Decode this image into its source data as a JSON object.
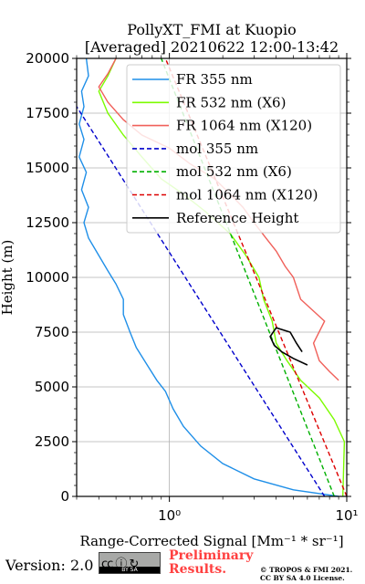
{
  "chart_data": {
    "type": "line",
    "title": "PollyXT_FMI at Kuopio",
    "subtitle": "[Averaged] 20210622 12:00-13:42",
    "xlabel": "Range-Corrected Signal [Mm⁻¹ * sr⁻¹]",
    "ylabel": "Height (m)",
    "xscale": "log",
    "xlim": [
      0.3,
      10
    ],
    "ylim": [
      0,
      20000
    ],
    "x_ticks": [
      1,
      10
    ],
    "x_tick_labels": [
      "10⁰",
      "10¹"
    ],
    "y_ticks": [
      0,
      2500,
      5000,
      7500,
      10000,
      12500,
      15000,
      17500,
      20000
    ],
    "y_tick_labels": [
      "0",
      "2500",
      "5000",
      "7500",
      "10000",
      "12500",
      "15000",
      "17500",
      "20000"
    ],
    "grid": true,
    "legend_position": "top-right",
    "series": [
      {
        "name": "FR 355 nm",
        "color": "#1f8fe8",
        "style": "solid",
        "points": [
          [
            9.0,
            0
          ],
          [
            5.0,
            300
          ],
          [
            3.0,
            800
          ],
          [
            2.0,
            1500
          ],
          [
            1.5,
            2300
          ],
          [
            1.2,
            3200
          ],
          [
            1.05,
            4000
          ],
          [
            0.95,
            4800
          ],
          [
            0.85,
            5300
          ],
          [
            0.75,
            6000
          ],
          [
            0.65,
            6800
          ],
          [
            0.6,
            7500
          ],
          [
            0.55,
            8300
          ],
          [
            0.55,
            9000
          ],
          [
            0.5,
            9700
          ],
          [
            0.45,
            10300
          ],
          [
            0.4,
            11000
          ],
          [
            0.35,
            11800
          ],
          [
            0.33,
            12500
          ],
          [
            0.35,
            13200
          ],
          [
            0.32,
            14000
          ],
          [
            0.34,
            14800
          ],
          [
            0.31,
            15500
          ],
          [
            0.33,
            16300
          ],
          [
            0.31,
            17000
          ],
          [
            0.33,
            17800
          ],
          [
            0.32,
            18500
          ],
          [
            0.35,
            19200
          ],
          [
            0.34,
            20000
          ]
        ]
      },
      {
        "name": "FR 532 nm (X6)",
        "color": "#7cfc00",
        "style": "solid",
        "points": [
          [
            9.5,
            0
          ],
          [
            9.7,
            2500
          ],
          [
            8.5,
            3500
          ],
          [
            7.0,
            4500
          ],
          [
            5.5,
            5300
          ],
          [
            4.6,
            6200
          ],
          [
            4.0,
            7000
          ],
          [
            3.8,
            8000
          ],
          [
            3.4,
            9000
          ],
          [
            3.2,
            10000
          ],
          [
            2.7,
            11000
          ],
          [
            2.2,
            12000
          ],
          [
            1.6,
            13000
          ],
          [
            1.2,
            13800
          ],
          [
            0.9,
            14500
          ],
          [
            0.7,
            15500
          ],
          [
            0.55,
            16500
          ],
          [
            0.45,
            17500
          ],
          [
            0.4,
            18500
          ],
          [
            0.45,
            19200
          ],
          [
            0.5,
            20000
          ]
        ]
      },
      {
        "name": "FR 1064 nm (X120)",
        "color": "#f0605a",
        "style": "solid",
        "points": [
          [
            9.0,
            5300
          ],
          [
            8.0,
            5700
          ],
          [
            7.0,
            6200
          ],
          [
            6.5,
            7000
          ],
          [
            7.5,
            8000
          ],
          [
            5.5,
            9000
          ],
          [
            5.0,
            10000
          ],
          [
            4.5,
            10500
          ],
          [
            4.0,
            11200
          ],
          [
            3.5,
            11800
          ],
          [
            3.0,
            12500
          ],
          [
            2.6,
            13200
          ],
          [
            2.2,
            13800
          ],
          [
            1.8,
            14500
          ],
          [
            1.3,
            15200
          ],
          [
            1.0,
            15900
          ],
          [
            0.7,
            16500
          ],
          [
            0.55,
            17200
          ],
          [
            0.45,
            18000
          ],
          [
            0.4,
            18700
          ],
          [
            0.45,
            19300
          ],
          [
            0.5,
            20000
          ]
        ]
      },
      {
        "name": "mol 355 nm",
        "color": "#0000cc",
        "style": "dashed",
        "points": [
          [
            7.5,
            0
          ],
          [
            0.3,
            17800
          ]
        ]
      },
      {
        "name": "mol 532 nm (X6)",
        "color": "#00b000",
        "style": "dashed",
        "points": [
          [
            8.5,
            0
          ],
          [
            0.9,
            20000
          ]
        ]
      },
      {
        "name": "mol 1064 nm (X120)",
        "color": "#dd0000",
        "style": "dashed",
        "points": [
          [
            10,
            0
          ],
          [
            0.95,
            20000
          ]
        ]
      },
      {
        "name": "Reference Height",
        "color": "#000000",
        "style": "solid",
        "points": [
          [
            6.0,
            6000
          ],
          [
            5.0,
            6300
          ],
          [
            4.3,
            6600
          ],
          [
            3.9,
            6900
          ],
          [
            3.7,
            7300
          ],
          [
            4.0,
            7700
          ],
          [
            4.8,
            7500
          ],
          [
            5.2,
            7000
          ],
          [
            5.6,
            6600
          ]
        ]
      }
    ]
  },
  "footer": {
    "version": "Version: 2.0",
    "preliminary_line1": "Preliminary",
    "preliminary_line2": "Results.",
    "copyright_line1": "© TROPOS & FMI 2021.",
    "copyright_line2": "CC BY SA 4.0 License."
  },
  "badge": {
    "symbols": "cc ⓘ ↻",
    "strip": "BY   SA"
  }
}
